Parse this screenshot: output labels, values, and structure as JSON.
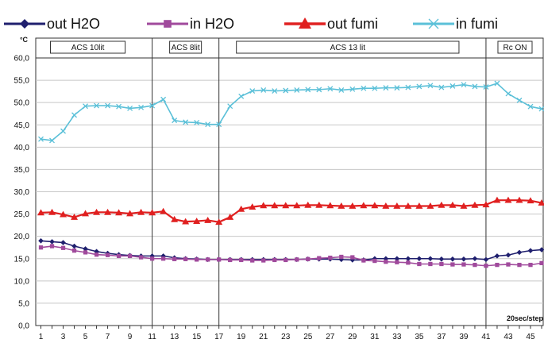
{
  "chart_data": {
    "type": "line",
    "title": "",
    "ylabel": "°C",
    "xlabel": "20sec/step",
    "ylim": [
      0,
      60
    ],
    "yticks": [
      "0,0",
      "5,0",
      "10,0",
      "15,0",
      "20,0",
      "25,0",
      "30,0",
      "35,0",
      "40,0",
      "45,0",
      "50,0",
      "55,0",
      "60,0"
    ],
    "x": [
      1,
      2,
      3,
      4,
      5,
      6,
      7,
      8,
      9,
      10,
      11,
      12,
      13,
      14,
      15,
      16,
      17,
      18,
      19,
      20,
      21,
      22,
      23,
      24,
      25,
      26,
      27,
      28,
      29,
      30,
      31,
      32,
      33,
      34,
      35,
      36,
      37,
      38,
      39,
      40,
      41,
      42,
      43,
      44,
      45,
      46
    ],
    "xtick_labels": [
      "1",
      "3",
      "5",
      "7",
      "9",
      "11",
      "13",
      "15",
      "17",
      "19",
      "21",
      "23",
      "25",
      "27",
      "29",
      "31",
      "33",
      "35",
      "37",
      "39",
      "41",
      "43",
      "45"
    ],
    "grid": true,
    "legend": "top",
    "sections": [
      {
        "label": "ACS  10lit",
        "start": 1,
        "end": 11
      },
      {
        "label": "ACS 8lit",
        "start": 11,
        "end": 17
      },
      {
        "label": "ACS 13 lit",
        "start": 17,
        "end": 41
      },
      {
        "label": "Rc ON",
        "start": 41,
        "end": 46
      }
    ],
    "series": [
      {
        "name": "out H2O",
        "color": "#1f1f6e",
        "marker": "diamond",
        "values": [
          19.0,
          18.8,
          18.6,
          17.8,
          17.2,
          16.6,
          16.2,
          15.9,
          15.7,
          15.6,
          15.6,
          15.6,
          15.2,
          15.0,
          14.9,
          14.8,
          14.8,
          14.8,
          14.8,
          14.8,
          14.8,
          14.8,
          14.8,
          14.8,
          14.9,
          14.9,
          14.9,
          14.8,
          14.7,
          14.7,
          15.0,
          15.0,
          15.0,
          15.0,
          15.0,
          15.0,
          14.9,
          14.9,
          14.9,
          15.0,
          14.8,
          15.6,
          15.8,
          16.4,
          16.8,
          17.0
        ]
      },
      {
        "name": "in H2O",
        "color": "#a04a9c",
        "marker": "square",
        "values": [
          17.5,
          17.8,
          17.4,
          16.8,
          16.4,
          15.9,
          15.8,
          15.6,
          15.6,
          15.3,
          15.0,
          15.0,
          14.9,
          14.9,
          14.8,
          14.8,
          14.8,
          14.7,
          14.7,
          14.6,
          14.6,
          14.7,
          14.7,
          14.8,
          14.9,
          15.1,
          15.2,
          15.4,
          15.3,
          14.6,
          14.5,
          14.3,
          14.2,
          14.1,
          13.8,
          13.8,
          13.8,
          13.7,
          13.7,
          13.6,
          13.4,
          13.6,
          13.7,
          13.6,
          13.6,
          14.0
        ]
      },
      {
        "name": "out fumi",
        "color": "#e02020",
        "marker": "triangle",
        "values": [
          25.3,
          25.4,
          24.9,
          24.3,
          25.1,
          25.4,
          25.4,
          25.3,
          25.1,
          25.4,
          25.3,
          25.6,
          23.8,
          23.3,
          23.4,
          23.6,
          23.2,
          24.3,
          26.1,
          26.6,
          26.9,
          26.9,
          26.9,
          26.9,
          27.0,
          27.0,
          26.9,
          26.8,
          26.8,
          26.9,
          26.9,
          26.8,
          26.8,
          26.8,
          26.8,
          26.8,
          27.0,
          27.0,
          26.8,
          27.0,
          27.1,
          28.1,
          28.1,
          28.1,
          28.0,
          27.5
        ]
      },
      {
        "name": "in fumi",
        "color": "#5bc0d8",
        "marker": "x",
        "values": [
          41.8,
          41.5,
          43.6,
          47.2,
          49.2,
          49.3,
          49.3,
          49.1,
          48.7,
          48.9,
          49.3,
          50.7,
          46.0,
          45.6,
          45.5,
          45.1,
          45.1,
          49.2,
          51.4,
          52.6,
          52.8,
          52.6,
          52.7,
          52.8,
          52.9,
          52.9,
          53.1,
          52.8,
          53.0,
          53.2,
          53.2,
          53.3,
          53.3,
          53.4,
          53.6,
          53.8,
          53.4,
          53.7,
          54.0,
          53.6,
          53.5,
          54.3,
          52.0,
          50.5,
          49.1,
          48.6
        ]
      }
    ]
  }
}
